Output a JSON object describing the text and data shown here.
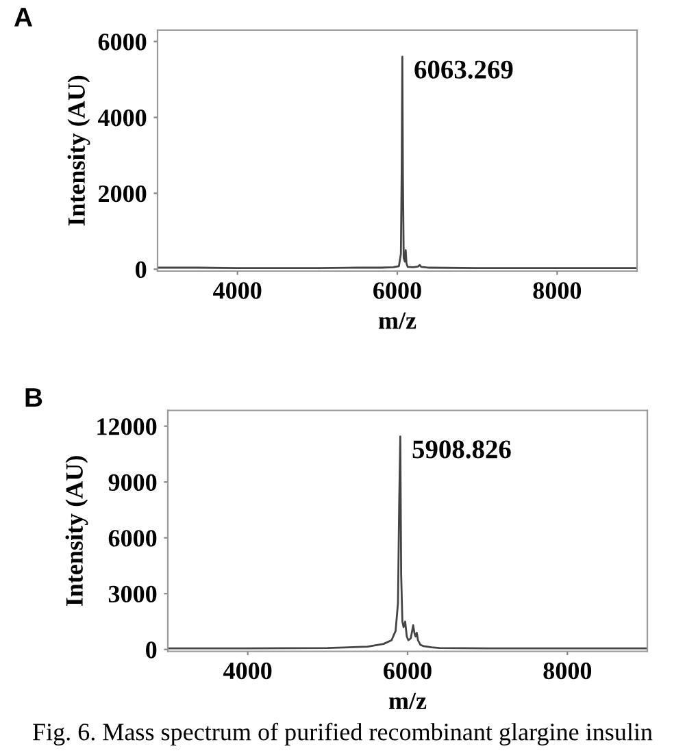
{
  "chart_data": [
    {
      "type": "line",
      "title": "A",
      "xlabel": "m/z",
      "ylabel": "Intensity (AU)",
      "xlim": [
        3000,
        9000
      ],
      "ylim": [
        -50,
        6300
      ],
      "xticks": [
        4000,
        6000,
        8000
      ],
      "yticks": [
        0,
        2000,
        4000,
        6000
      ],
      "grid": false,
      "series": [
        {
          "color": "#444444",
          "x": [
            3000,
            3500,
            4000,
            4500,
            5000,
            5500,
            5800,
            5950,
            6020,
            6045,
            6055,
            6063,
            6070,
            6080,
            6095,
            6105,
            6115,
            6130,
            6200,
            6260,
            6280,
            6300,
            6400,
            7000,
            7500,
            8000,
            8500,
            9000
          ],
          "values": [
            40,
            40,
            30,
            30,
            30,
            40,
            40,
            50,
            80,
            400,
            2600,
            5600,
            2500,
            300,
            200,
            500,
            150,
            60,
            50,
            70,
            110,
            60,
            40,
            30,
            30,
            30,
            30,
            30
          ]
        }
      ],
      "annotations": [
        {
          "text": "6063.269",
          "x": 6063,
          "y": 5600
        }
      ]
    },
    {
      "type": "line",
      "title": "B",
      "xlabel": "m/z",
      "ylabel": "Intensity (AU)",
      "xlim": [
        3000,
        9000
      ],
      "ylim": [
        -100,
        12850
      ],
      "xticks": [
        4000,
        6000,
        8000
      ],
      "yticks": [
        0,
        3000,
        6000,
        9000,
        12000
      ],
      "grid": false,
      "series": [
        {
          "color": "#444444",
          "x": [
            3000,
            4000,
            5000,
            5500,
            5700,
            5800,
            5850,
            5880,
            5895,
            5909,
            5920,
            5935,
            5950,
            5970,
            5990,
            6010,
            6040,
            6070,
            6085,
            6100,
            6115,
            6130,
            6160,
            6200,
            6300,
            6400,
            7000,
            8000,
            9000
          ],
          "values": [
            60,
            60,
            80,
            150,
            300,
            500,
            1000,
            2500,
            7800,
            11450,
            4000,
            1500,
            1200,
            1500,
            700,
            500,
            600,
            1300,
            900,
            700,
            900,
            500,
            250,
            180,
            120,
            80,
            60,
            60,
            60
          ]
        }
      ],
      "annotations": [
        {
          "text": "5908.826",
          "x": 5909,
          "y": 11450
        },
        "Fig. 6. Mass spectrum of purified recombinant glargine insulin"
      ]
    }
  ]
}
